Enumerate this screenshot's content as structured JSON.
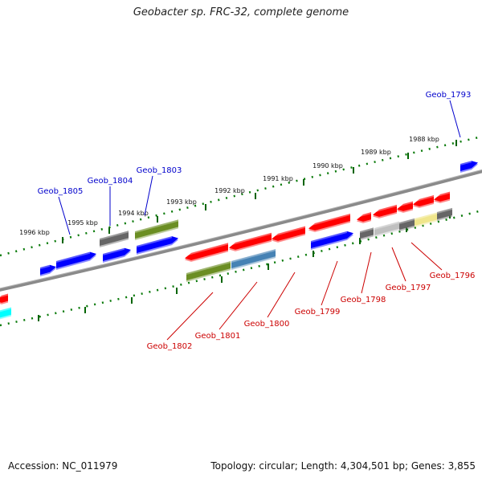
{
  "title": "Geobacter sp. FRC-32, complete genome",
  "footer": {
    "accession": "Accession: NC_011979",
    "summary": "Topology: circular; Length: 4,304,501 bp; Genes: 3,855"
  },
  "colors": {
    "red": "#ff0000",
    "blue": "#0000ff",
    "olive": "#6b8e23",
    "steelblue": "#4682b4",
    "gray": "#666666",
    "lightgray": "#c0c0c0",
    "khaki": "#f0e68c",
    "cyan": "#00ffff",
    "backbone": "#808080",
    "tick": "#006400",
    "upper_label": "#0000cc",
    "lower_label": "#cc0000"
  },
  "scale_ticks": [
    {
      "label": "1988 kbp"
    },
    {
      "label": "1989 kbp"
    },
    {
      "label": "1990 kbp"
    },
    {
      "label": "1991 kbp"
    },
    {
      "label": "1992 kbp"
    },
    {
      "label": "1993 kbp"
    },
    {
      "label": "1994 kbp"
    },
    {
      "label": "1995 kbp"
    },
    {
      "label": "1996 kbp"
    }
  ],
  "upper_genes": [
    {
      "name": "Geob_1793"
    },
    {
      "name": "Geob_1803"
    },
    {
      "name": "Geob_1804"
    },
    {
      "name": "Geob_1805"
    }
  ],
  "lower_genes": [
    {
      "name": "Geob_1796"
    },
    {
      "name": "Geob_1797"
    },
    {
      "name": "Geob_1798"
    },
    {
      "name": "Geob_1799"
    },
    {
      "name": "Geob_1800"
    },
    {
      "name": "Geob_1801"
    },
    {
      "name": "Geob_1802"
    }
  ]
}
